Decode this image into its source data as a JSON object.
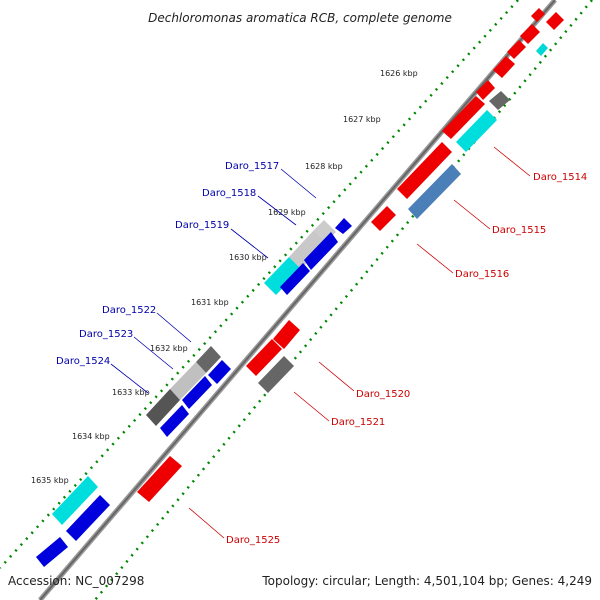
{
  "title": "Dechloromonas aromatica RCB, complete genome",
  "footer": {
    "accession": "Accession: NC_007298",
    "summary": "Topology: circular; Length: 4,501,104 bp; Genes: 4,249"
  },
  "colors": {
    "forward_label": "#0000aa",
    "reverse_label": "#cc0000",
    "tick_dots": "#008800",
    "backbone": "#777777"
  },
  "kbp_ticks": [
    "1626 kbp",
    "1627 kbp",
    "1628 kbp",
    "1629 kbp",
    "1630 kbp",
    "1631 kbp",
    "1632 kbp",
    "1633 kbp",
    "1634 kbp",
    "1635 kbp"
  ],
  "gene_labels": {
    "forward": [
      "Daro_1517",
      "Daro_1518",
      "Daro_1519",
      "Daro_1522",
      "Daro_1523",
      "Daro_1524"
    ],
    "reverse": [
      "Daro_1514",
      "Daro_1515",
      "Daro_1516",
      "Daro_1520",
      "Daro_1521",
      "Daro_1525"
    ]
  }
}
